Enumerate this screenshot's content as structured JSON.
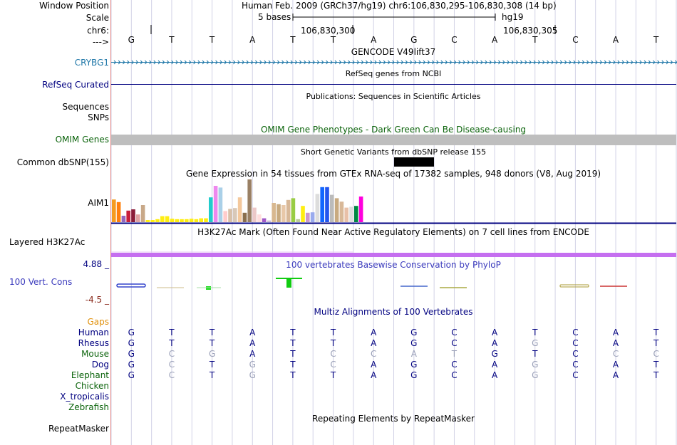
{
  "colors": {
    "navy": "#000080",
    "crybg1": "#1f77a8",
    "omim_green": "#0c640c",
    "gaps_orange": "#e0900a",
    "conservation_blue": "#3b3bbd",
    "conservation_neg": "#8a2b1d",
    "h3k27ac_purple": "#c56ff0",
    "omim_bar_gray": "#bebebe",
    "dim_base": "#9aa0b8",
    "grid_line": "#d2d2e6",
    "left_border": "#e38b8b"
  },
  "header": {
    "window_position_label": "Window Position",
    "window_position_value": "Human Feb. 2009 (GRCh37/hg19)   chr6:106,830,295-106,830,308 (14 bp)",
    "scale_label": "Scale",
    "scale_text": "5 bases",
    "assembly": "hg19",
    "chrom_label": "chr6:",
    "pos1": "106,830,300",
    "pos2": "106,830,305",
    "strand_label": "--->"
  },
  "bases": [
    "G",
    "T",
    "T",
    "A",
    "T",
    "T",
    "A",
    "G",
    "C",
    "A",
    "T",
    "C",
    "A",
    "T"
  ],
  "tracks": {
    "gencode_title": "GENCODE V49lift37",
    "crybg1_label": "CRYBG1",
    "refseq_title": "RefSeq genes from NCBI",
    "refseq_label": "RefSeq Curated",
    "publications_title": "Publications: Sequences in Scientific Articles",
    "sequences_label": "Sequences",
    "snps_label": "SNPs",
    "omim_title": "OMIM Gene Phenotypes - Dark Green Can Be Disease-causing",
    "omim_label": "OMIM Genes",
    "dbsnp_title": "Short Genetic Variants from dbSNP release 155",
    "dbsnp_label": "Common dbSNP(155)",
    "gtex_title": "Gene Expression in 54 tissues from GTEx RNA-seq of 17382 samples, 948 donors (V8, Aug 2019)",
    "gtex_label": "AIM1",
    "h3k_title": "H3K27Ac Mark (Often Found Near Active Regulatory Elements) on 7 cell lines from ENCODE",
    "h3k_label": "Layered H3K27Ac",
    "cons_max": "4.88 _",
    "cons_title": "100 vertebrates Basewise Conservation by PhyloP",
    "cons_label": "100 Vert. Cons",
    "cons_min": "-4.5 _",
    "gaps_label": "Gaps",
    "multiz_title": "Multiz Alignments of 100 Vertebrates",
    "repeat_title": "Repeating Elements by RepeatMasker",
    "repeat_label": "RepeatMasker"
  },
  "gtex_bars": [
    {
      "color": "#f59b20",
      "value": 0.53
    },
    {
      "color": "#ff7f0e",
      "value": 0.47
    },
    {
      "color": "#9467bd",
      "value": 0.15
    },
    {
      "color": "#c71f3b",
      "value": 0.27
    },
    {
      "color": "#8c1d3a",
      "value": 0.3
    },
    {
      "color": "#e0a3a3",
      "value": 0.18
    },
    {
      "color": "#c8a888",
      "value": 0.4
    },
    {
      "color": "#ffee11",
      "value": 0.05
    },
    {
      "color": "#ffee11",
      "value": 0.05
    },
    {
      "color": "#ffee11",
      "value": 0.07
    },
    {
      "color": "#ffee11",
      "value": 0.14
    },
    {
      "color": "#ffee11",
      "value": 0.14
    },
    {
      "color": "#ffee11",
      "value": 0.08
    },
    {
      "color": "#ffee11",
      "value": 0.07
    },
    {
      "color": "#ffee11",
      "value": 0.07
    },
    {
      "color": "#ffee11",
      "value": 0.07
    },
    {
      "color": "#ffee11",
      "value": 0.08
    },
    {
      "color": "#ffee11",
      "value": 0.07
    },
    {
      "color": "#ffee11",
      "value": 0.09
    },
    {
      "color": "#ffee11",
      "value": 0.09
    },
    {
      "color": "#22cccc",
      "value": 0.58
    },
    {
      "color": "#ee88ee",
      "value": 0.85
    },
    {
      "color": "#aad0e8",
      "value": 0.81
    },
    {
      "color": "#ffcccc",
      "value": 0.26
    },
    {
      "color": "#d8c0a8",
      "value": 0.31
    },
    {
      "color": "#d8c8b8",
      "value": 0.33
    },
    {
      "color": "#f4c89c",
      "value": 0.58
    },
    {
      "color": "#8a6f4e",
      "value": 0.22
    },
    {
      "color": "#9a8064",
      "value": 1.0
    },
    {
      "color": "#ecc8c8",
      "value": 0.34
    },
    {
      "color": "#ffdddd",
      "value": 0.18
    },
    {
      "color": "#a058c8",
      "value": 0.09
    },
    {
      "color": "#d0c0d8",
      "value": 0.04
    },
    {
      "color": "#d8b890",
      "value": 0.45
    },
    {
      "color": "#c8aa80",
      "value": 0.42
    },
    {
      "color": "#e8c8a8",
      "value": 0.4
    },
    {
      "color": "#d8b898",
      "value": 0.52
    },
    {
      "color": "#99cc44",
      "value": 0.56
    },
    {
      "color": "#bbcc99",
      "value": 0.07
    },
    {
      "color": "#ffee11",
      "value": 0.38
    },
    {
      "color": "#cc99cc",
      "value": 0.22
    },
    {
      "color": "#99aaee",
      "value": 0.23
    },
    {
      "color": "#dddddd",
      "value": 0.66
    },
    {
      "color": "#1166ff",
      "value": 0.82
    },
    {
      "color": "#2255ee",
      "value": 0.82
    },
    {
      "color": "#bbbbbb",
      "value": 0.64
    },
    {
      "color": "#c8aa80",
      "value": 0.56
    },
    {
      "color": "#d8b898",
      "value": 0.48
    },
    {
      "color": "#e8c0a8",
      "value": 0.34
    },
    {
      "color": "#dddddd",
      "value": 0.36
    },
    {
      "color": "#008844",
      "value": 0.38
    },
    {
      "color": "#ff00dd",
      "value": 0.6
    }
  ],
  "multiz": [
    {
      "name": "Human",
      "color": "#000080",
      "bases": [
        "G",
        "T",
        "T",
        "A",
        "T",
        "T",
        "A",
        "G",
        "C",
        "A",
        "T",
        "C",
        "A",
        "T"
      ],
      "dim": []
    },
    {
      "name": "Rhesus",
      "color": "#000080",
      "bases": [
        "G",
        "T",
        "T",
        "A",
        "T",
        "T",
        "A",
        "G",
        "C",
        "A",
        "G",
        "C",
        "A",
        "T"
      ],
      "dim": [
        10
      ]
    },
    {
      "name": "Mouse",
      "color": "#0c640c",
      "bases": [
        "G",
        "C",
        "G",
        "A",
        "T",
        "C",
        "C",
        "A",
        "T",
        "G",
        "T",
        "C",
        "C",
        "C"
      ],
      "dim": [
        1,
        2,
        5,
        6,
        7,
        8,
        12,
        13
      ]
    },
    {
      "name": "Dog",
      "color": "#000080",
      "bases": [
        "G",
        "C",
        "T",
        "G",
        "T",
        "C",
        "A",
        "G",
        "C",
        "A",
        "G",
        "C",
        "A",
        "T"
      ],
      "dim": [
        1,
        3,
        5,
        10
      ]
    },
    {
      "name": "Elephant",
      "color": "#0c640c",
      "bases": [
        "G",
        "C",
        "T",
        "G",
        "T",
        "T",
        "A",
        "G",
        "C",
        "A",
        "G",
        "C",
        "A",
        "T"
      ],
      "dim": [
        1,
        3,
        10
      ]
    },
    {
      "name": "Chicken",
      "color": "#0c640c",
      "bases": [],
      "dim": []
    },
    {
      "name": "X_tropicalis",
      "color": "#000080",
      "bases": [],
      "dim": []
    },
    {
      "name": "Zebrafish",
      "color": "#0c640c",
      "bases": [],
      "dim": []
    }
  ]
}
